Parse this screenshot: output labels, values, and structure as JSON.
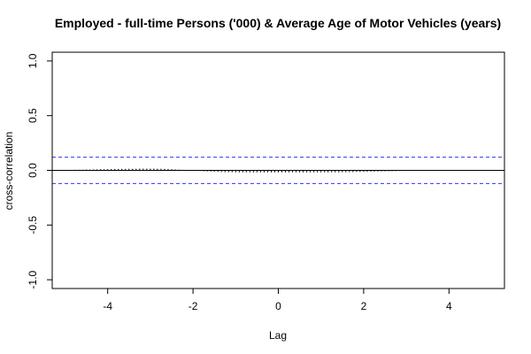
{
  "chart_data": {
    "type": "bar",
    "title": "Employed - full-time Persons ('000) & Average Age of Motor Vehicles (years)",
    "xlabel": "Lag",
    "ylabel": "cross-correlation",
    "xlim": [
      -5.3,
      5.3
    ],
    "ylim": [
      -1.08,
      1.08
    ],
    "x_ticks": [
      "-4",
      "-2",
      "0",
      "2",
      "4"
    ],
    "y_ticks": [
      "-1.0",
      "-0.5",
      "0.0",
      "0.5",
      "1.0"
    ],
    "confidence_bound": 0.12,
    "lag_step": 0.0833,
    "lags_min": -5.0,
    "lags_max": 5.0,
    "values": [
      0.002,
      0.003,
      0.004,
      0.005,
      0.005,
      0.006,
      0.007,
      0.007,
      0.008,
      0.009,
      0.01,
      0.01,
      0.011,
      0.012,
      0.013,
      0.013,
      0.014,
      0.014,
      0.015,
      0.015,
      0.015,
      0.016,
      0.016,
      0.016,
      0.016,
      0.016,
      0.015,
      0.015,
      0.014,
      0.013,
      0.011,
      0.009,
      0.007,
      0.005,
      0.002,
      0.0,
      -0.002,
      -0.004,
      -0.006,
      -0.008,
      -0.01,
      -0.011,
      -0.013,
      -0.014,
      -0.015,
      -0.016,
      -0.017,
      -0.017,
      -0.018,
      -0.018,
      -0.018,
      -0.018,
      -0.018,
      -0.018,
      -0.018,
      -0.018,
      -0.018,
      -0.018,
      -0.018,
      -0.018,
      -0.018,
      -0.018,
      -0.018,
      -0.018,
      -0.018,
      -0.018,
      -0.018,
      -0.018,
      -0.018,
      -0.018,
      -0.018,
      -0.018,
      -0.018,
      -0.018,
      -0.018,
      -0.018,
      -0.018,
      -0.018,
      -0.017,
      -0.017,
      -0.016,
      -0.016,
      -0.015,
      -0.015,
      -0.014,
      -0.013,
      -0.012,
      -0.012,
      -0.011,
      -0.01,
      -0.009,
      -0.008,
      -0.008,
      -0.007,
      -0.006,
      -0.005,
      -0.004,
      -0.004,
      -0.003,
      -0.002,
      -0.002,
      -0.001,
      -0.001,
      -0.001,
      -0.0,
      -0.0,
      -0.0,
      -0.0,
      -0.0,
      -0.0,
      -0.0,
      -0.0,
      -0.0,
      -0.0,
      -0.0,
      -0.0,
      -0.0,
      -0.0,
      -0.0,
      -0.0,
      -0.0
    ],
    "colors": {
      "bars": "#000000",
      "bound": "#3333ee",
      "axis": "#000000"
    },
    "grid": false,
    "legend": "none"
  }
}
